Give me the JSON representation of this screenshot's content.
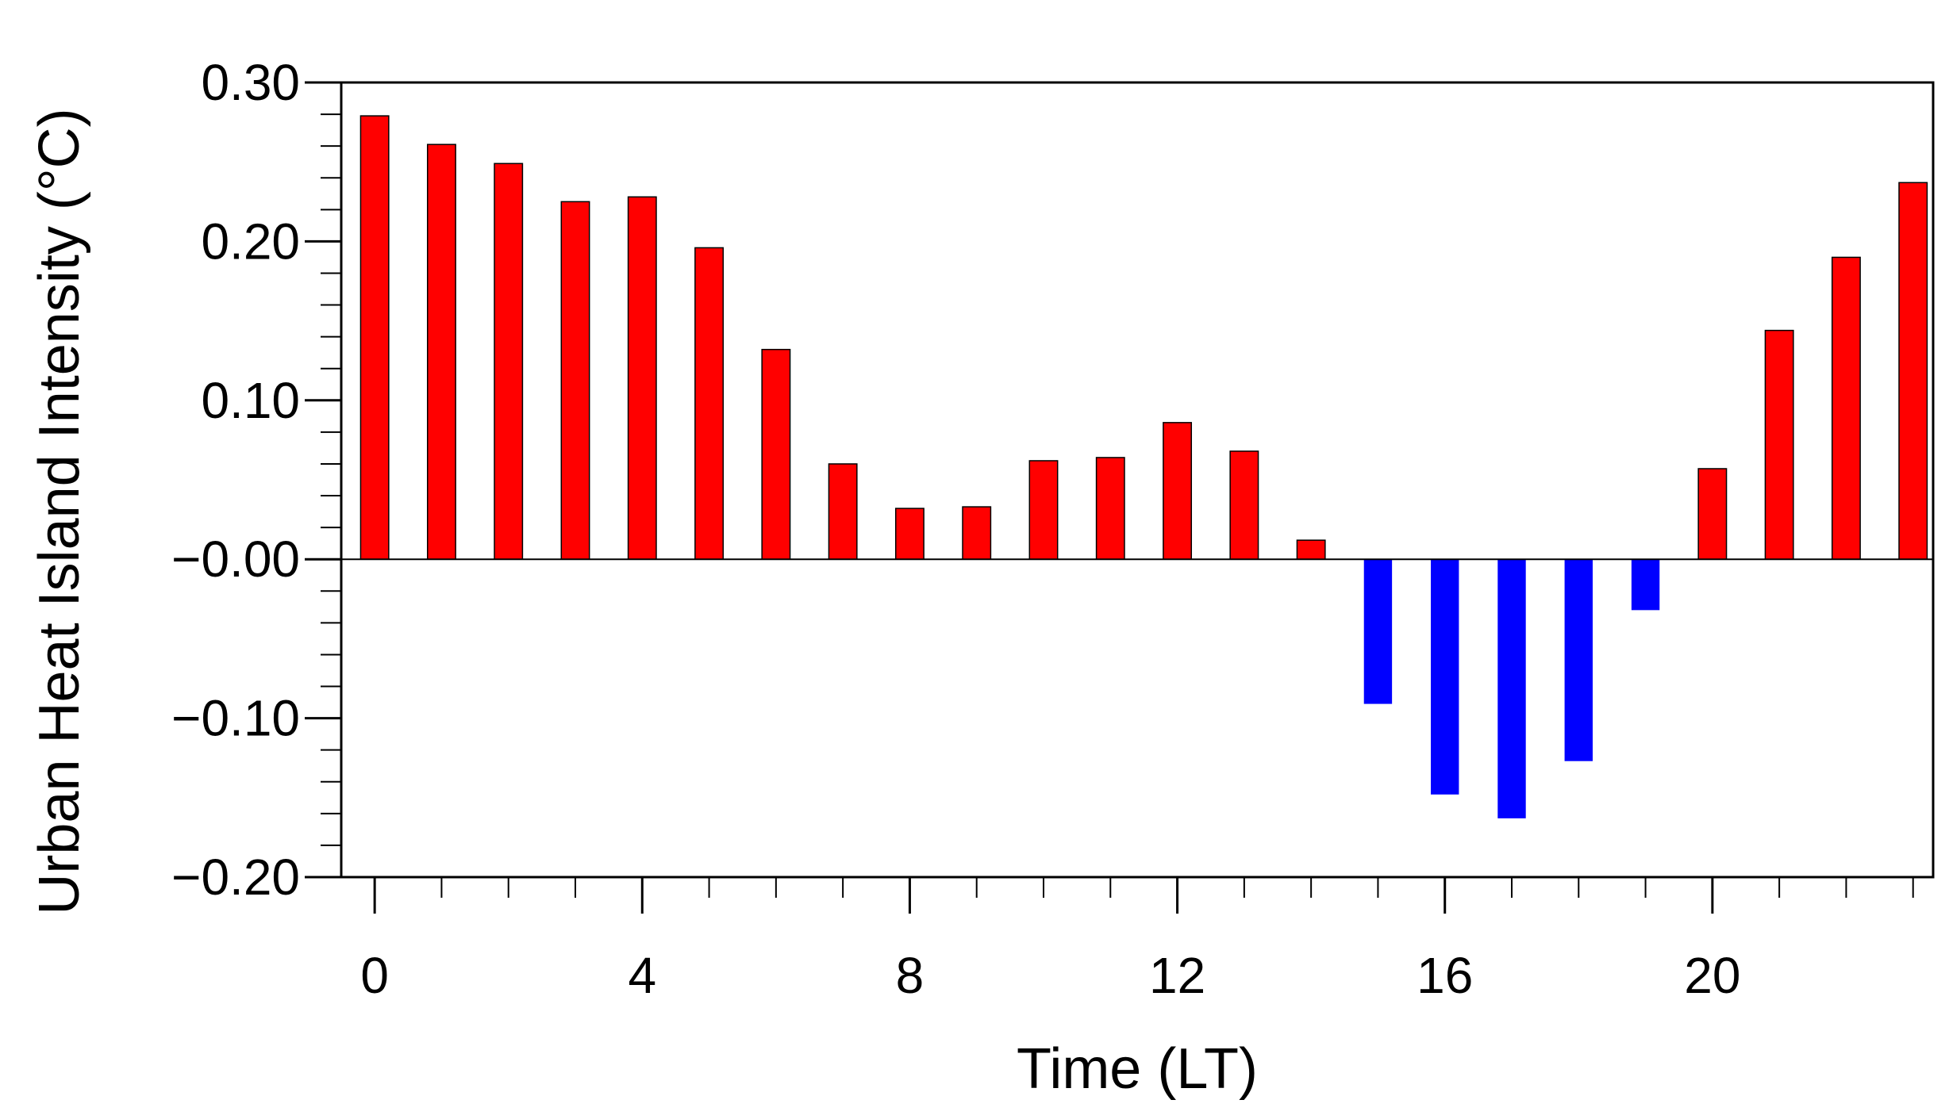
{
  "chart_data": {
    "type": "bar",
    "title": "",
    "xlabel": "Time (LT)",
    "ylabel": "Urban Heat Island Intensity (°C)",
    "x": [
      0,
      1,
      2,
      3,
      4,
      5,
      6,
      7,
      8,
      9,
      10,
      11,
      12,
      13,
      14,
      15,
      16,
      17,
      18,
      19,
      20,
      21,
      22,
      23
    ],
    "values": [
      0.279,
      0.261,
      0.249,
      0.225,
      0.228,
      0.196,
      0.132,
      0.06,
      0.032,
      0.033,
      0.062,
      0.064,
      0.086,
      0.068,
      0.012,
      -0.091,
      -0.148,
      -0.163,
      -0.127,
      -0.032,
      0.057,
      0.144,
      0.19,
      0.237
    ],
    "xlim": [
      -0.5,
      23.3
    ],
    "ylim": [
      -0.2,
      0.3
    ],
    "x_ticks": [
      0,
      4,
      8,
      12,
      16,
      20
    ],
    "x_tick_labels": [
      "0",
      "4",
      "8",
      "12",
      "16",
      "20"
    ],
    "y_ticks": [
      -0.2,
      -0.1,
      0.0,
      0.1,
      0.2,
      0.3
    ],
    "y_tick_labels": [
      "−0.20",
      "−0.10",
      "−0.00",
      "0.10",
      "0.20",
      "0.30"
    ],
    "positive_color": "#ff0000",
    "negative_color": "#0000ff",
    "grid": false,
    "zero_line": true,
    "legend": "none"
  }
}
